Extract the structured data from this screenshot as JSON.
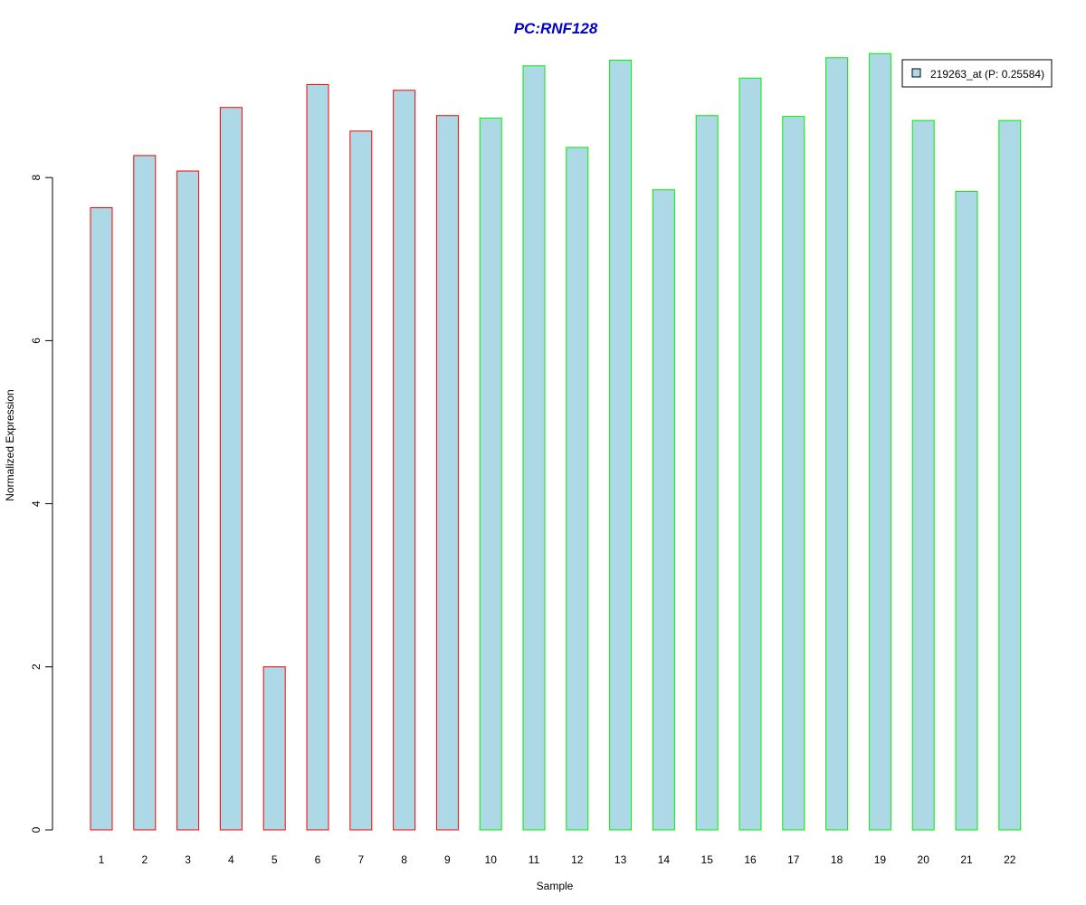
{
  "chart_data": {
    "type": "bar",
    "title": "PC:RNF128",
    "xlabel": "Sample",
    "ylabel": "Normalized Expression",
    "categories": [
      "1",
      "2",
      "3",
      "4",
      "5",
      "6",
      "7",
      "8",
      "9",
      "10",
      "11",
      "12",
      "13",
      "14",
      "15",
      "16",
      "17",
      "18",
      "19",
      "20",
      "21",
      "22"
    ],
    "series": [
      {
        "name": "219263_at (P: 0.25584)",
        "values": [
          7.63,
          8.27,
          8.08,
          8.86,
          2.0,
          9.14,
          8.57,
          9.07,
          8.76,
          8.73,
          9.37,
          8.37,
          9.44,
          7.85,
          8.76,
          9.22,
          8.75,
          9.47,
          9.52,
          8.7,
          7.83,
          8.7
        ]
      }
    ],
    "groups": [
      {
        "samples": [
          1,
          9
        ],
        "border_color": "#ff0000"
      },
      {
        "samples": [
          10,
          22
        ],
        "border_color": "#00ee00"
      }
    ],
    "ylim": [
      0,
      9.6
    ],
    "yticks": [
      0,
      2,
      4,
      6,
      8
    ],
    "grid": false,
    "legend_position": "top-right",
    "colors": {
      "bar_fill": "#add8e6",
      "title": "#0000cc"
    }
  }
}
